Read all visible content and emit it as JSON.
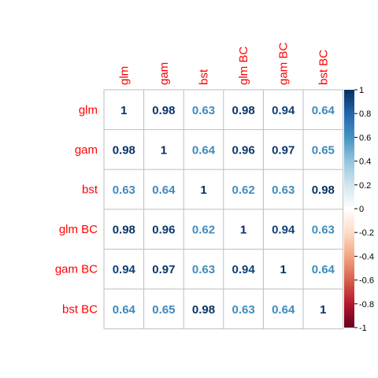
{
  "chart_data": {
    "type": "heatmap",
    "method": "number",
    "rows": [
      "glm",
      "gam",
      "bst",
      "glm BC",
      "gam BC",
      "bst BC"
    ],
    "columns": [
      "glm",
      "gam",
      "bst",
      "glm BC",
      "gam BC",
      "bst BC"
    ],
    "values": [
      [
        1,
        0.98,
        0.63,
        0.98,
        0.94,
        0.64
      ],
      [
        0.98,
        1,
        0.64,
        0.96,
        0.97,
        0.65
      ],
      [
        0.63,
        0.64,
        1,
        0.62,
        0.63,
        0.98
      ],
      [
        0.98,
        0.96,
        0.62,
        1,
        0.94,
        0.63
      ],
      [
        0.94,
        0.97,
        0.63,
        0.94,
        1,
        0.64
      ],
      [
        0.64,
        0.65,
        0.98,
        0.63,
        0.64,
        1
      ]
    ],
    "label_color": "#ff0000",
    "grid": true,
    "legend": {
      "placement": "right",
      "range": [
        -1,
        1
      ],
      "ticks": [
        "1",
        "0.8",
        "0.6",
        "0.4",
        "0.2",
        "0",
        "-0.2",
        "-0.4",
        "-0.6",
        "-0.8",
        "-1"
      ],
      "colors": [
        "#67001f",
        "#b2182b",
        "#d6604d",
        "#f4a582",
        "#fddbc7",
        "#ffffff",
        "#d1e5f0",
        "#92c5de",
        "#4393c3",
        "#2166ac",
        "#053061"
      ]
    }
  }
}
